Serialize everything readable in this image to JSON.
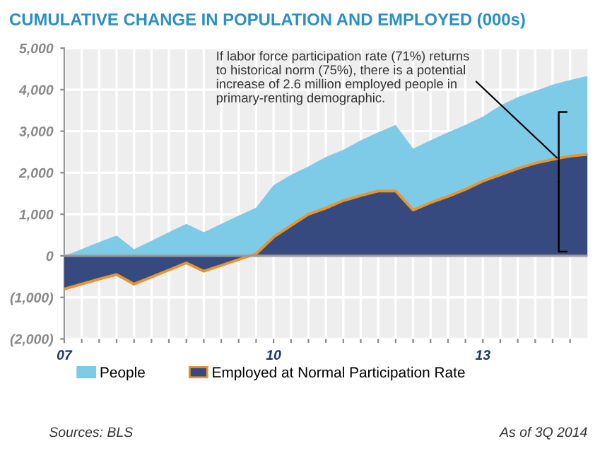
{
  "chart_data": {
    "type": "area",
    "title": "CUMULATIVE CHANGE IN POPULATION AND EMPLOYED (000s)",
    "x": [
      2007,
      2007.25,
      2007.5,
      2007.75,
      2008,
      2008.25,
      2008.5,
      2008.75,
      2009,
      2009.25,
      2009.5,
      2009.75,
      2010,
      2010.25,
      2010.5,
      2010.75,
      2011,
      2011.25,
      2011.5,
      2011.75,
      2012,
      2012.25,
      2012.5,
      2012.75,
      2013,
      2013.25,
      2013.5,
      2013.75,
      2014,
      2014.25,
      2014.5
    ],
    "series": [
      {
        "name": "People",
        "color": "#7ecbe8",
        "values": [
          0,
          160,
          330,
          490,
          160,
          360,
          570,
          770,
          570,
          770,
          970,
          1160,
          1700,
          1950,
          2150,
          2380,
          2550,
          2780,
          2970,
          3150,
          2580,
          2780,
          2970,
          3150,
          3350,
          3620,
          3820,
          3970,
          4120,
          4230,
          4330
        ]
      },
      {
        "name": "Employed at Normal Participation Rate",
        "color": "#374a80",
        "values": [
          -800,
          -680,
          -560,
          -450,
          -680,
          -510,
          -340,
          -170,
          -370,
          -230,
          -90,
          50,
          450,
          730,
          1000,
          1150,
          1330,
          1450,
          1560,
          1560,
          1100,
          1280,
          1430,
          1600,
          1800,
          1950,
          2100,
          2230,
          2320,
          2400,
          2440
        ]
      }
    ],
    "xlim": [
      2007,
      2014.5
    ],
    "xticks": [
      {
        "value": 2007,
        "label": "07"
      },
      {
        "value": 2007.25,
        "label": null
      },
      {
        "value": 2007.5,
        "label": null
      },
      {
        "value": 2007.75,
        "label": null
      },
      {
        "value": 2008,
        "label": null
      },
      {
        "value": 2008.25,
        "label": null
      },
      {
        "value": 2008.5,
        "label": null
      },
      {
        "value": 2008.75,
        "label": null
      },
      {
        "value": 2009,
        "label": null
      },
      {
        "value": 2009.25,
        "label": null
      },
      {
        "value": 2009.5,
        "label": null
      },
      {
        "value": 2009.75,
        "label": null
      },
      {
        "value": 2010,
        "label": "10"
      },
      {
        "value": 2010.25,
        "label": null
      },
      {
        "value": 2010.5,
        "label": null
      },
      {
        "value": 2010.75,
        "label": null
      },
      {
        "value": 2011,
        "label": null
      },
      {
        "value": 2011.25,
        "label": null
      },
      {
        "value": 2011.5,
        "label": null
      },
      {
        "value": 2011.75,
        "label": null
      },
      {
        "value": 2012,
        "label": null
      },
      {
        "value": 2012.25,
        "label": null
      },
      {
        "value": 2012.5,
        "label": null
      },
      {
        "value": 2012.75,
        "label": null
      },
      {
        "value": 2013,
        "label": "13"
      },
      {
        "value": 2013.25,
        "label": null
      },
      {
        "value": 2013.5,
        "label": null
      },
      {
        "value": 2013.75,
        "label": null
      },
      {
        "value": 2014,
        "label": null
      },
      {
        "value": 2014.25,
        "label": null
      }
    ],
    "ylim": [
      -2000,
      5000
    ],
    "yticks": [
      {
        "value": -2000,
        "label": "(2,000)"
      },
      {
        "value": -1000,
        "label": "(1,000)"
      },
      0,
      {
        "value": 1000,
        "label": "1,000"
      },
      {
        "value": 2000,
        "label": "2,000"
      },
      {
        "value": 3000,
        "label": "3,000"
      },
      {
        "value": 4000,
        "label": "4,000"
      },
      {
        "value": 5000,
        "label": "5,000"
      }
    ],
    "grid": true,
    "legend": "bottom",
    "annotations": [
      {
        "text": "If labor force participation rate (71%) returns\nto historical norm (75%), there is a potential\nincrease of 2.6 million employed people in\nprimary-renting demographic.",
        "x": 2014.1,
        "y": 2300
      },
      "Sources: BLS",
      "As of 3Q 2014"
    ]
  }
}
